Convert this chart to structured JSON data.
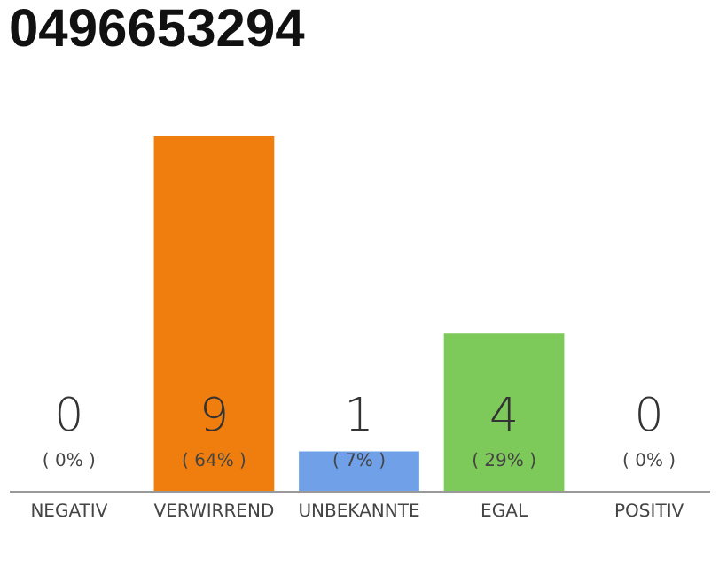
{
  "chart_data": {
    "type": "bar",
    "title": "0496653294",
    "categories": [
      "NEGATIV",
      "VERWIRREND",
      "UNBEKANNTE",
      "EGAL",
      "POSITIV"
    ],
    "values": [
      0,
      9,
      1,
      4,
      0
    ],
    "colors": [
      "#d9d9d9",
      "#f07e0e",
      "#6fa0e8",
      "#7dc95a",
      "#d9d9d9"
    ],
    "data_labels": true,
    "annotations": [
      "( 0% )",
      "( 64% )",
      "( 7% )",
      "( 29% )",
      "( 0% )"
    ]
  }
}
